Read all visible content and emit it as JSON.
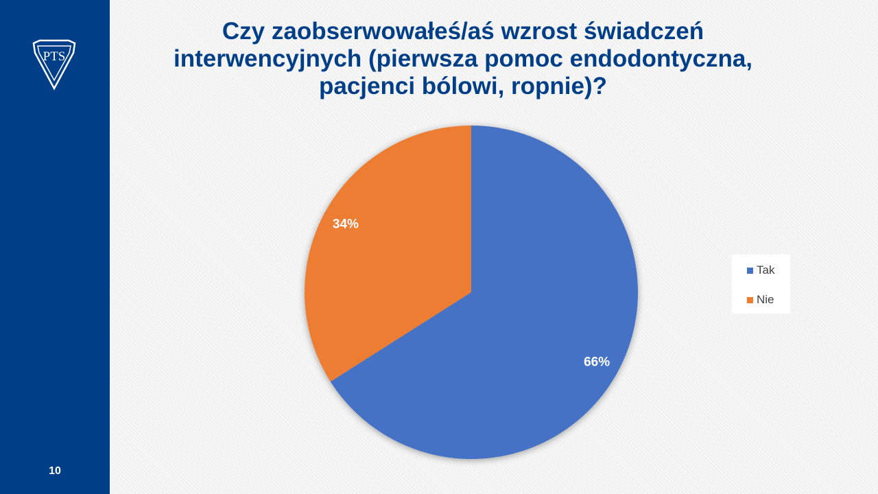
{
  "slide": {
    "title": "Czy zaobserwowałeś/aś wzrost świadczeń interwencyjnych (pierwsza pomoc endodontyczna, pacjenci bólowi, ropnie)?",
    "page_number": "10",
    "logo_text": "PTS"
  },
  "colors": {
    "sidebar": "#003f87",
    "title": "#003f87",
    "tak": "#4472c4",
    "nie": "#ed7d31",
    "data_label": "#ffffff",
    "legend_text": "#404040"
  },
  "chart_data": {
    "type": "pie",
    "title": "",
    "categories": [
      "Tak",
      "Nie"
    ],
    "values": [
      66,
      34
    ],
    "data_labels": [
      "66%",
      "34%"
    ],
    "colors": [
      "#4472c4",
      "#ed7d31"
    ],
    "start_angle": "12 o'clock, clockwise",
    "legend": {
      "position": "right",
      "entries": [
        "Tak",
        "Nie"
      ]
    }
  }
}
